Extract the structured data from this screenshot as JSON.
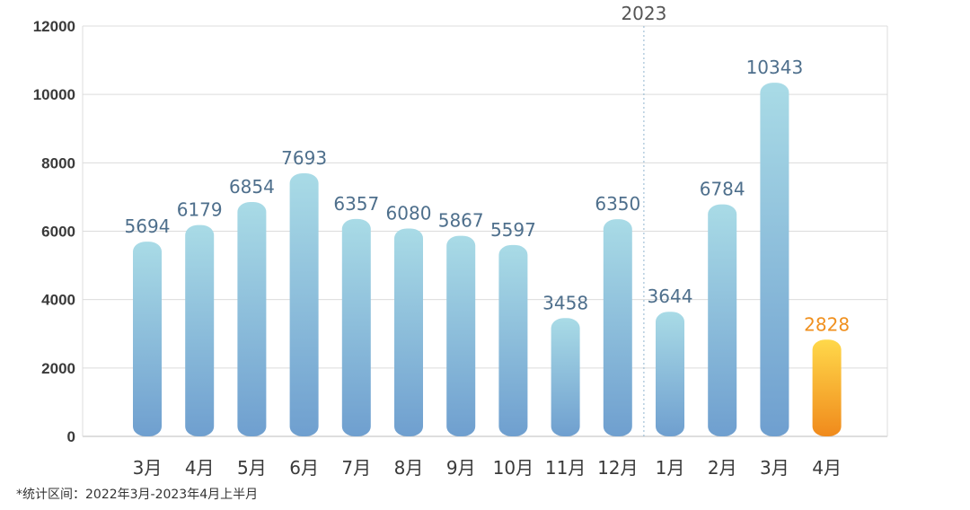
{
  "chart_data": {
    "type": "bar",
    "title": "",
    "xlabel": "",
    "ylabel": "",
    "ylim": [
      0,
      12000
    ],
    "yticks": [
      0,
      2000,
      4000,
      6000,
      8000,
      10000,
      12000
    ],
    "grid": true,
    "categories": [
      "3月",
      "4月",
      "5月",
      "6月",
      "7月",
      "8月",
      "9月",
      "10月",
      "11月",
      "12月",
      "1月",
      "2月",
      "3月",
      "4月"
    ],
    "values": [
      5694,
      6179,
      6854,
      7693,
      6357,
      6080,
      5867,
      5597,
      3458,
      6350,
      3644,
      6784,
      10343,
      2828
    ],
    "highlight_index": 13,
    "year_divider": {
      "label": "2023",
      "before_index": 10
    },
    "colors": {
      "bar_top": "#a9dbe6",
      "bar_bottom": "#6f9fcf",
      "highlight_top": "#ffd84a",
      "highlight_bottom": "#f08a1c",
      "label": "#4e6f8c",
      "highlight_label": "#f0901e"
    }
  },
  "footnote": "*统计区间：2022年3月-2023年4月上半月"
}
